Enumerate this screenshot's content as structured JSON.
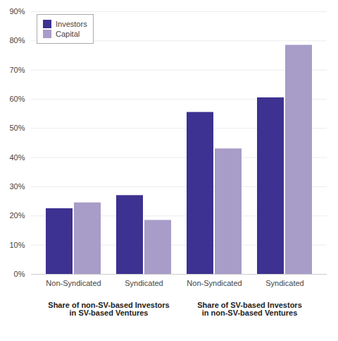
{
  "chart_data": {
    "type": "bar",
    "categories": [
      "Non-Syndicated",
      "Syndicated",
      "Non-Syndicated",
      "Syndicated"
    ],
    "series": [
      {
        "name": "Investors",
        "color": "#3d3191",
        "values": [
          22.5,
          27,
          55.5,
          60.5
        ]
      },
      {
        "name": "Capital",
        "color": "#a89cc8",
        "values": [
          24.5,
          18.5,
          43,
          78.5
        ]
      }
    ],
    "ylim": [
      0,
      90
    ],
    "yticks": [
      {
        "value": 0,
        "label": "0%"
      },
      {
        "value": 10,
        "label": "10%"
      },
      {
        "value": 20,
        "label": "20%"
      },
      {
        "value": 30,
        "label": "30%"
      },
      {
        "value": 40,
        "label": "40%"
      },
      {
        "value": 50,
        "label": "50%"
      },
      {
        "value": 60,
        "label": "60%"
      },
      {
        "value": 70,
        "label": "70%"
      },
      {
        "value": 80,
        "label": "80%"
      },
      {
        "value": 90,
        "label": "90%"
      }
    ],
    "grid": true,
    "legend": "upper left",
    "annotations": [
      "Share of non-SV-based Investors\nin SV-based Ventures",
      "Share of SV-based Investors\nin non-SV-based Ventures"
    ]
  }
}
